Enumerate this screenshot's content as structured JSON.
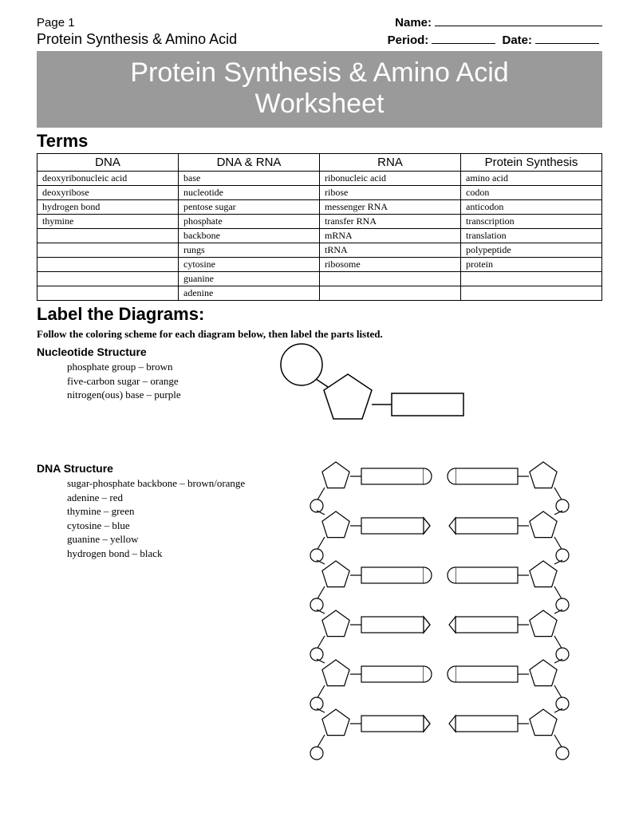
{
  "header": {
    "page_label": "Page 1",
    "name_label": "Name:",
    "subtitle": "Protein Synthesis & Amino Acid",
    "period_label": "Period:",
    "date_label": "Date:"
  },
  "banner": {
    "line1": "Protein Synthesis & Amino Acid",
    "line2": "Worksheet"
  },
  "terms": {
    "title": "Terms",
    "columns": [
      "DNA",
      "DNA & RNA",
      "RNA",
      "Protein Synthesis"
    ],
    "rows": [
      [
        "deoxyribonucleic acid",
        "base",
        "ribonucleic acid",
        "amino acid"
      ],
      [
        "deoxyribose",
        "nucleotide",
        "ribose",
        "codon"
      ],
      [
        "hydrogen bond",
        "pentose sugar",
        "messenger RNA",
        "anticodon"
      ],
      [
        "thymine",
        "phosphate",
        "transfer RNA",
        "transcription"
      ],
      [
        "",
        "backbone",
        "mRNA",
        "translation"
      ],
      [
        "",
        "rungs",
        "tRNA",
        "polypeptide"
      ],
      [
        "",
        "cytosine",
        "ribosome",
        "protein"
      ],
      [
        "",
        "guanine",
        "",
        ""
      ],
      [
        "",
        "adenine",
        "",
        ""
      ]
    ],
    "col_widths": [
      "25%",
      "25%",
      "25%",
      "25%"
    ]
  },
  "label_section": {
    "title": "Label the Diagrams:",
    "instruction": "Follow the coloring scheme for each diagram below, then label the parts listed."
  },
  "nucleotide": {
    "heading": "Nucleotide Structure",
    "items": [
      "phosphate group – brown",
      "five-carbon sugar – orange",
      "nitrogen(ous) base – purple"
    ],
    "diagram": {
      "stroke": "#000000",
      "stroke_width": 1.5,
      "fill": "#ffffff"
    }
  },
  "dna": {
    "heading": "DNA Structure",
    "items": [
      "sugar-phosphate backbone – brown/orange",
      "adenine – red",
      "thymine – green",
      "cytosine – blue",
      "guanine – yellow",
      "hydrogen bond – black"
    ],
    "diagram": {
      "stroke": "#000000",
      "stroke_width": 1.2,
      "fill": "#ffffff",
      "rungs": 6
    }
  }
}
